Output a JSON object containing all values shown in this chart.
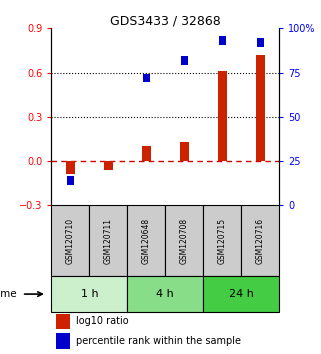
{
  "title": "GDS3433 / 32868",
  "samples": [
    "GSM120710",
    "GSM120711",
    "GSM120648",
    "GSM120708",
    "GSM120715",
    "GSM120716"
  ],
  "log10_ratio": [
    -0.09,
    -0.06,
    0.1,
    0.13,
    0.61,
    0.72
  ],
  "percentile_rank": [
    14,
    null,
    72,
    82,
    93,
    92
  ],
  "groups": [
    {
      "label": "1 h",
      "indices": [
        0,
        1
      ],
      "color": "#ccf0cc"
    },
    {
      "label": "4 h",
      "indices": [
        2,
        3
      ],
      "color": "#88dd88"
    },
    {
      "label": "24 h",
      "indices": [
        4,
        5
      ],
      "color": "#44cc44"
    }
  ],
  "ylim_left": [
    -0.3,
    0.9
  ],
  "ylim_right": [
    0,
    100
  ],
  "yticks_left": [
    -0.3,
    0.0,
    0.3,
    0.6,
    0.9
  ],
  "yticks_right": [
    0,
    25,
    50,
    75,
    100
  ],
  "hlines": [
    0.3,
    0.6
  ],
  "bar_color_red": "#cc2200",
  "bar_color_blue": "#0000cc",
  "zero_line_color": "#cc0000",
  "bar_width": 0.25,
  "marker_size": 8
}
